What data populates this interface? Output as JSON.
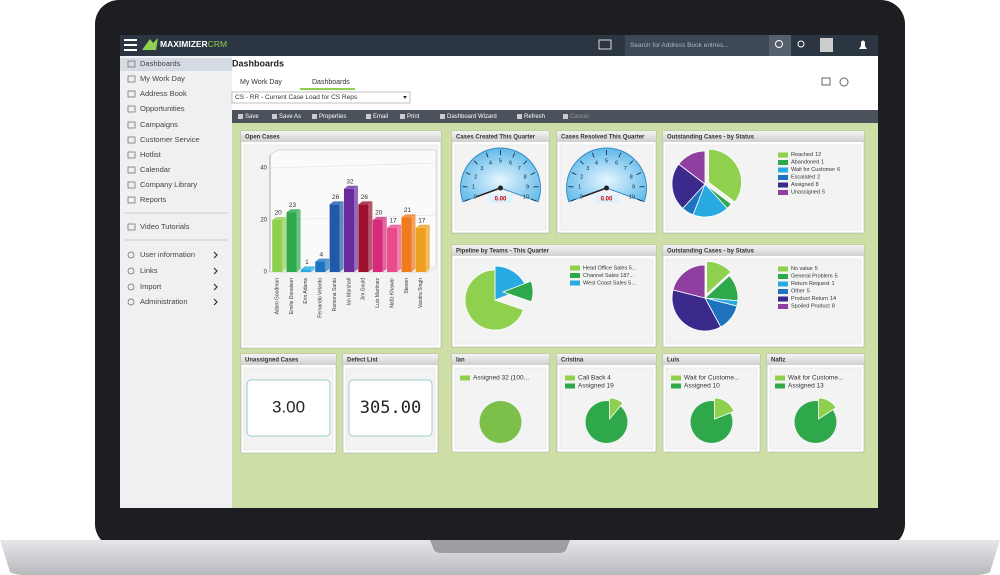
{
  "brand": {
    "name": "MAXIMIZER",
    "suffix": "CRM"
  },
  "search_placeholder": "Search for Address Book entries...",
  "sidebar": {
    "items": [
      "Dashboards",
      "My Work Day",
      "Address Book",
      "Opportunities",
      "Campaigns",
      "Customer Service",
      "Hotlist",
      "Calendar",
      "Company Library",
      "Reports"
    ],
    "extra": [
      "Video Tutorials"
    ],
    "settings": [
      "User information",
      "Links",
      "Import",
      "Administration"
    ]
  },
  "page_title": "Dashboards",
  "tabs": [
    "My Work Day",
    "Dashboards"
  ],
  "dashboard_select": "CS - RR - Current Case Load for CS Reps",
  "toolbar": [
    "Save",
    "Save As",
    "Properties",
    "Email",
    "Print",
    "Dashboard Wizard",
    "Refresh",
    "Cancel"
  ],
  "widgets": {
    "open_cases": {
      "type": "bar",
      "title": "Open Cases",
      "categories": [
        "Adam Goodman",
        "Emilie Donalson",
        "Erin Adams",
        "Fernando Velardo",
        "Ramona Santo",
        "Ian Marshall",
        "Jim Gould",
        "Luis Martinez",
        "Nafiz Khawar",
        "Steven",
        "Vandra Singh"
      ],
      "values": [
        20,
        23,
        1,
        4,
        26,
        32,
        26,
        20,
        17,
        21,
        17
      ],
      "colors": [
        "#8fd14f",
        "#2ea84a",
        "#27aae1",
        "#1e73be",
        "#1e5aa8",
        "#6a2a9c",
        "#9c1030",
        "#d62a7a",
        "#e84a8a",
        "#f07a1e",
        "#f0a020"
      ],
      "ylim": [
        0,
        45
      ],
      "yticks": [
        0,
        20,
        40
      ]
    },
    "gauges": [
      {
        "title": "Cases Created This Quarter",
        "value": 0,
        "value_label": "0.00",
        "range": [
          0,
          10
        ],
        "ticks": [
          0,
          1,
          2,
          3,
          4,
          5,
          6,
          7,
          8,
          9,
          10
        ]
      },
      {
        "title": "Cases Resolved This Quarter",
        "value": 0,
        "value_label": "0.00",
        "range": [
          0,
          10
        ],
        "ticks": [
          0,
          1,
          2,
          3,
          4,
          5,
          6,
          7,
          8,
          9,
          10
        ]
      }
    ],
    "status_pies": [
      {
        "title": "Outstanding Cases - by Status",
        "legend": [
          {
            "label": "Reached",
            "value": 12,
            "color": "#8fd14f"
          },
          {
            "label": "Abandoned",
            "value": 1,
            "color": "#2ea84a"
          },
          {
            "label": "Wait for Customer",
            "value": 6,
            "color": "#27aae1"
          },
          {
            "label": "Escalated",
            "value": 2,
            "color": "#1e73be"
          },
          {
            "label": "Assigned",
            "value": 8,
            "color": "#3b2a8c"
          },
          {
            "label": "Unassigned",
            "value": 5,
            "color": "#8e3fa0"
          }
        ]
      },
      {
        "title": "Outstanding Cases - by Status",
        "legend": [
          {
            "label": "No value",
            "value": 5,
            "color": "#8fd14f"
          },
          {
            "label": "General Problem",
            "value": 5,
            "color": "#2ea84a"
          },
          {
            "label": "Return Request",
            "value": 1,
            "color": "#27aae1"
          },
          {
            "label": "Other",
            "value": 5,
            "color": "#1e73be"
          },
          {
            "label": "Product Return",
            "value": 14,
            "color": "#3b2a8c"
          },
          {
            "label": "Spoiled Product",
            "value": 8,
            "color": "#8e3fa0"
          }
        ]
      }
    ],
    "pipeline": {
      "title": "Pipeline by Teams - This Quarter",
      "legend": [
        "Head Office Sales 5...",
        "Channel Sales 187...",
        "West Coast Sales 5..."
      ],
      "colors": [
        "#8fd14f",
        "#2ea84a",
        "#27aae1"
      ]
    },
    "big_values": [
      {
        "title": "Unassigned Cases",
        "value": "3.00"
      },
      {
        "title": "Defect List",
        "value": "305.00"
      }
    ],
    "reps": [
      {
        "title": "Ian",
        "legend": [
          "Assigned 32 (100..."
        ]
      },
      {
        "title": "Cristina",
        "legend": [
          "Call Back 4",
          "Assigned 19"
        ]
      },
      {
        "title": "Luis",
        "legend": [
          "Wait for Custome...",
          "Assigned 10"
        ]
      },
      {
        "title": "Nafiz",
        "legend": [
          "Wait for Custome...",
          "Assigned 13"
        ]
      }
    ]
  }
}
